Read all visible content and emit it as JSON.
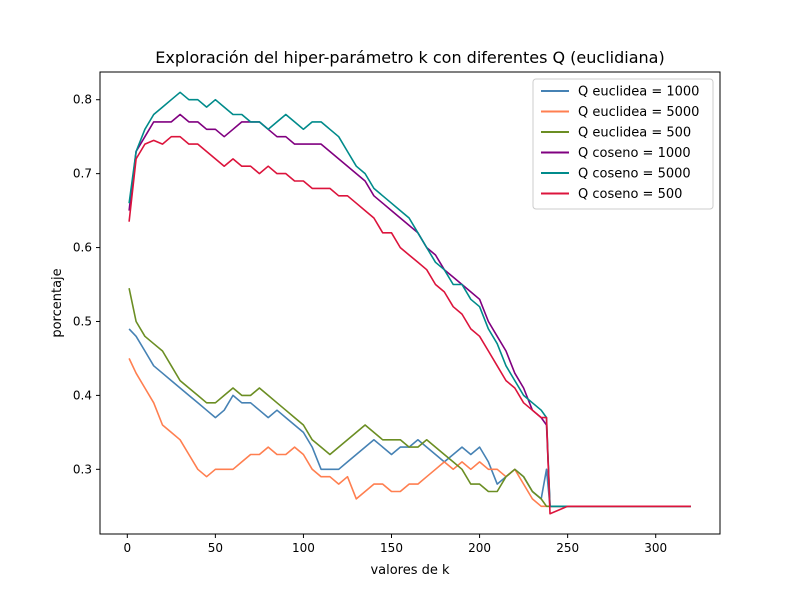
{
  "chart_data": {
    "type": "line",
    "title": "Exploración del hiper-parámetro k con diferentes Q (euclidiana)",
    "xlabel": "valores de k",
    "ylabel": "porcentaje",
    "xlim": [
      -15.5,
      336.5
    ],
    "ylim": [
      0.2125,
      0.8375
    ],
    "xticks": [
      0,
      50,
      100,
      150,
      200,
      250,
      300
    ],
    "yticks": [
      0.3,
      0.4,
      0.5,
      0.6,
      0.7,
      0.8
    ],
    "grid": false,
    "legend_position": "top-right",
    "series": [
      {
        "name": "Q euclidea = 1000",
        "color": "#4682b4",
        "x": [
          1,
          5,
          10,
          15,
          20,
          25,
          30,
          35,
          40,
          45,
          50,
          55,
          60,
          65,
          70,
          75,
          80,
          85,
          90,
          95,
          100,
          105,
          110,
          115,
          120,
          125,
          130,
          135,
          140,
          145,
          150,
          155,
          160,
          165,
          170,
          175,
          180,
          185,
          190,
          195,
          200,
          205,
          210,
          215,
          220,
          225,
          230,
          235,
          238,
          240,
          250,
          260,
          280,
          300,
          320
        ],
        "y": [
          0.49,
          0.48,
          0.46,
          0.44,
          0.43,
          0.42,
          0.41,
          0.4,
          0.39,
          0.38,
          0.37,
          0.38,
          0.4,
          0.39,
          0.39,
          0.38,
          0.37,
          0.38,
          0.37,
          0.36,
          0.35,
          0.33,
          0.3,
          0.3,
          0.3,
          0.31,
          0.32,
          0.33,
          0.34,
          0.33,
          0.32,
          0.33,
          0.33,
          0.34,
          0.33,
          0.32,
          0.31,
          0.32,
          0.33,
          0.32,
          0.33,
          0.31,
          0.28,
          0.29,
          0.3,
          0.29,
          0.27,
          0.26,
          0.3,
          0.25,
          0.25,
          0.25,
          0.25,
          0.25,
          0.25
        ]
      },
      {
        "name": "Q euclidea = 5000",
        "color": "#ff7f50",
        "x": [
          1,
          5,
          10,
          15,
          20,
          25,
          30,
          35,
          40,
          45,
          50,
          55,
          60,
          65,
          70,
          75,
          80,
          85,
          90,
          95,
          100,
          105,
          110,
          115,
          120,
          125,
          130,
          135,
          140,
          145,
          150,
          155,
          160,
          165,
          170,
          175,
          180,
          185,
          190,
          195,
          200,
          205,
          210,
          215,
          220,
          225,
          230,
          235,
          238,
          240,
          250,
          260,
          280,
          300,
          320
        ],
        "y": [
          0.45,
          0.43,
          0.41,
          0.39,
          0.36,
          0.35,
          0.34,
          0.32,
          0.3,
          0.29,
          0.3,
          0.3,
          0.3,
          0.31,
          0.32,
          0.32,
          0.33,
          0.32,
          0.32,
          0.33,
          0.32,
          0.3,
          0.29,
          0.29,
          0.28,
          0.29,
          0.26,
          0.27,
          0.28,
          0.28,
          0.27,
          0.27,
          0.28,
          0.28,
          0.29,
          0.3,
          0.31,
          0.3,
          0.31,
          0.3,
          0.31,
          0.3,
          0.3,
          0.29,
          0.3,
          0.28,
          0.26,
          0.25,
          0.25,
          0.25,
          0.25,
          0.25,
          0.25,
          0.25,
          0.25
        ]
      },
      {
        "name": "Q euclidea = 500",
        "color": "#6b8e23",
        "x": [
          1,
          5,
          10,
          15,
          20,
          25,
          30,
          35,
          40,
          45,
          50,
          55,
          60,
          65,
          70,
          75,
          80,
          85,
          90,
          95,
          100,
          105,
          110,
          115,
          120,
          125,
          130,
          135,
          140,
          145,
          150,
          155,
          160,
          165,
          170,
          175,
          180,
          185,
          190,
          195,
          200,
          205,
          210,
          215,
          220,
          225,
          230,
          235,
          238,
          240,
          250,
          260,
          280,
          300,
          320
        ],
        "y": [
          0.545,
          0.5,
          0.48,
          0.47,
          0.46,
          0.44,
          0.42,
          0.41,
          0.4,
          0.39,
          0.39,
          0.4,
          0.41,
          0.4,
          0.4,
          0.41,
          0.4,
          0.39,
          0.38,
          0.37,
          0.36,
          0.34,
          0.33,
          0.32,
          0.33,
          0.34,
          0.35,
          0.36,
          0.35,
          0.34,
          0.34,
          0.34,
          0.33,
          0.33,
          0.34,
          0.33,
          0.32,
          0.31,
          0.3,
          0.28,
          0.28,
          0.27,
          0.27,
          0.29,
          0.3,
          0.29,
          0.27,
          0.26,
          0.25,
          0.25,
          0.25,
          0.25,
          0.25,
          0.25,
          0.25
        ]
      },
      {
        "name": "Q coseno = 1000",
        "color": "#800080",
        "x": [
          1,
          5,
          10,
          15,
          20,
          25,
          30,
          35,
          40,
          45,
          50,
          55,
          60,
          65,
          70,
          75,
          80,
          85,
          90,
          95,
          100,
          105,
          110,
          115,
          120,
          125,
          130,
          135,
          140,
          145,
          150,
          155,
          160,
          165,
          170,
          175,
          180,
          185,
          190,
          195,
          200,
          205,
          210,
          215,
          220,
          225,
          230,
          235,
          238,
          240,
          250,
          260,
          280,
          300,
          320
        ],
        "y": [
          0.65,
          0.73,
          0.75,
          0.77,
          0.77,
          0.77,
          0.78,
          0.77,
          0.77,
          0.76,
          0.76,
          0.75,
          0.76,
          0.77,
          0.77,
          0.77,
          0.76,
          0.75,
          0.75,
          0.74,
          0.74,
          0.74,
          0.74,
          0.73,
          0.72,
          0.71,
          0.7,
          0.69,
          0.67,
          0.66,
          0.65,
          0.64,
          0.63,
          0.62,
          0.6,
          0.59,
          0.57,
          0.56,
          0.55,
          0.54,
          0.53,
          0.5,
          0.48,
          0.46,
          0.43,
          0.41,
          0.38,
          0.37,
          0.36,
          0.25,
          0.25,
          0.25,
          0.25,
          0.25,
          0.25
        ]
      },
      {
        "name": "Q coseno = 5000",
        "color": "#008b8b",
        "x": [
          1,
          5,
          10,
          15,
          20,
          25,
          30,
          35,
          40,
          45,
          50,
          55,
          60,
          65,
          70,
          75,
          80,
          85,
          90,
          95,
          100,
          105,
          110,
          115,
          120,
          125,
          130,
          135,
          140,
          145,
          150,
          155,
          160,
          165,
          170,
          175,
          180,
          185,
          190,
          195,
          200,
          205,
          210,
          215,
          220,
          225,
          230,
          235,
          238,
          240,
          250,
          260,
          280,
          300,
          320
        ],
        "y": [
          0.66,
          0.73,
          0.76,
          0.78,
          0.79,
          0.8,
          0.81,
          0.8,
          0.8,
          0.79,
          0.8,
          0.79,
          0.78,
          0.78,
          0.77,
          0.77,
          0.76,
          0.77,
          0.78,
          0.77,
          0.76,
          0.77,
          0.77,
          0.76,
          0.75,
          0.73,
          0.71,
          0.7,
          0.68,
          0.67,
          0.66,
          0.65,
          0.64,
          0.62,
          0.6,
          0.58,
          0.57,
          0.55,
          0.55,
          0.53,
          0.52,
          0.49,
          0.47,
          0.44,
          0.42,
          0.4,
          0.39,
          0.38,
          0.37,
          0.25,
          0.25,
          0.25,
          0.25,
          0.25,
          0.25
        ]
      },
      {
        "name": "Q coseno = 500",
        "color": "#dc143c",
        "x": [
          1,
          5,
          10,
          15,
          20,
          25,
          30,
          35,
          40,
          45,
          50,
          55,
          60,
          65,
          70,
          75,
          80,
          85,
          90,
          95,
          100,
          105,
          110,
          115,
          120,
          125,
          130,
          135,
          140,
          145,
          150,
          155,
          160,
          165,
          170,
          175,
          180,
          185,
          190,
          195,
          200,
          205,
          210,
          215,
          220,
          225,
          230,
          235,
          238,
          240,
          250,
          260,
          280,
          300,
          320
        ],
        "y": [
          0.635,
          0.72,
          0.74,
          0.745,
          0.74,
          0.75,
          0.75,
          0.74,
          0.74,
          0.73,
          0.72,
          0.71,
          0.72,
          0.71,
          0.71,
          0.7,
          0.71,
          0.7,
          0.7,
          0.69,
          0.69,
          0.68,
          0.68,
          0.68,
          0.67,
          0.67,
          0.66,
          0.65,
          0.64,
          0.62,
          0.62,
          0.6,
          0.59,
          0.58,
          0.57,
          0.55,
          0.54,
          0.52,
          0.51,
          0.49,
          0.48,
          0.46,
          0.44,
          0.42,
          0.41,
          0.39,
          0.38,
          0.37,
          0.37,
          0.24,
          0.25,
          0.25,
          0.25,
          0.25,
          0.25
        ]
      }
    ]
  }
}
